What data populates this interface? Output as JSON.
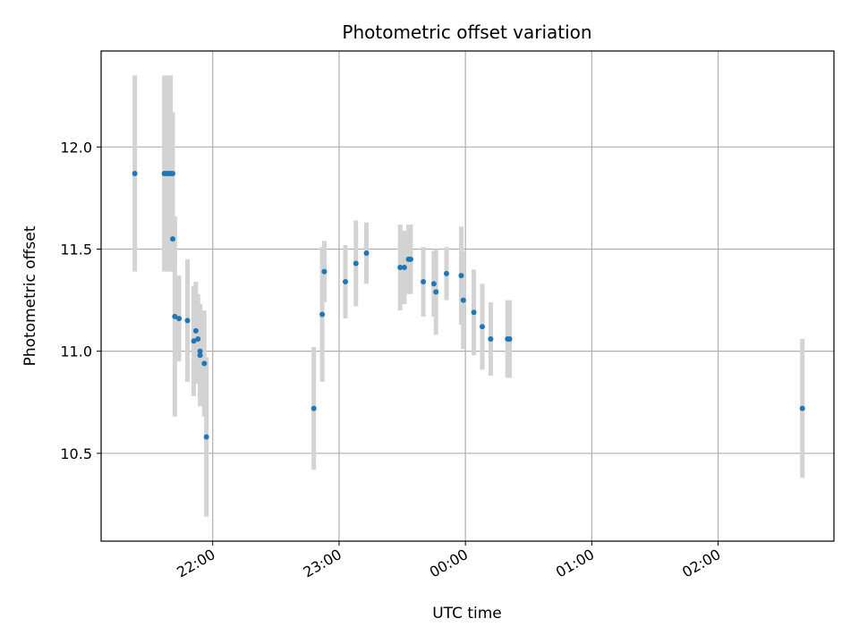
{
  "chart_data": {
    "type": "scatter",
    "title": "Photometric offset variation",
    "xlabel": "UTC time",
    "ylabel": "Photometric offset",
    "x_is_time": true,
    "x_tick_labels": [
      "22:00",
      "23:00",
      "00:00",
      "01:00",
      "02:00"
    ],
    "x_ticks": [
      "22:00",
      "23:00",
      "24:00",
      "25:00",
      "26:00"
    ],
    "y_ticks": [
      10.5,
      11.0,
      11.5,
      12.0
    ],
    "y_tick_labels": [
      "10.5",
      "11.0",
      "11.5",
      "12.0"
    ],
    "xlim": [
      "21:07",
      "26:55"
    ],
    "ylim": [
      10.07,
      12.47
    ],
    "grid": true,
    "colors": {
      "point": "#1f77b4",
      "errorbar": "#d3d3d3",
      "grid": "#b0b0b0"
    },
    "series": [
      {
        "points": [
          {
            "x": "21:23",
            "y": 11.87,
            "err": 0.48
          },
          {
            "x": "21:37",
            "y": 11.87,
            "err": 0.48
          },
          {
            "x": "21:38",
            "y": 11.87,
            "err": 0.48
          },
          {
            "x": "21:39",
            "y": 11.87,
            "err": 0.48
          },
          {
            "x": "21:40",
            "y": 11.87,
            "err": 0.48
          },
          {
            "x": "21:41",
            "y": 11.87,
            "err": 0.3
          },
          {
            "x": "21:41",
            "y": 11.55,
            "err": 0.12
          },
          {
            "x": "21:42",
            "y": 11.17,
            "err": 0.49
          },
          {
            "x": "21:44",
            "y": 11.16,
            "err": 0.21
          },
          {
            "x": "21:48",
            "y": 11.15,
            "err": 0.3
          },
          {
            "x": "21:51",
            "y": 11.05,
            "err": 0.27
          },
          {
            "x": "21:52",
            "y": 11.1,
            "err": 0.24
          },
          {
            "x": "21:53",
            "y": 11.06,
            "err": 0.22
          },
          {
            "x": "21:54",
            "y": 11.0,
            "err": 0.23
          },
          {
            "x": "21:54",
            "y": 10.98,
            "err": 0.25
          },
          {
            "x": "21:56",
            "y": 10.94,
            "err": 0.26
          },
          {
            "x": "21:57",
            "y": 10.58,
            "err": 0.39
          },
          {
            "x": "22:48",
            "y": 10.72,
            "err": 0.3
          },
          {
            "x": "22:52",
            "y": 11.18,
            "err": 0.33
          },
          {
            "x": "22:53",
            "y": 11.39,
            "err": 0.15
          },
          {
            "x": "23:03",
            "y": 11.34,
            "err": 0.18
          },
          {
            "x": "23:08",
            "y": 11.43,
            "err": 0.21
          },
          {
            "x": "23:13",
            "y": 11.48,
            "err": 0.15
          },
          {
            "x": "23:29",
            "y": 11.41,
            "err": 0.21
          },
          {
            "x": "23:31",
            "y": 11.41,
            "err": 0.18
          },
          {
            "x": "23:33",
            "y": 11.45,
            "err": 0.17
          },
          {
            "x": "23:34",
            "y": 11.45,
            "err": 0.17
          },
          {
            "x": "23:40",
            "y": 11.34,
            "err": 0.17
          },
          {
            "x": "23:45",
            "y": 11.33,
            "err": 0.16
          },
          {
            "x": "23:46",
            "y": 11.29,
            "err": 0.21
          },
          {
            "x": "23:51",
            "y": 11.38,
            "err": 0.13
          },
          {
            "x": "23:58",
            "y": 11.37,
            "err": 0.24
          },
          {
            "x": "23:59",
            "y": 11.25,
            "err": 0.24
          },
          {
            "x": "24:04",
            "y": 11.19,
            "err": 0.21
          },
          {
            "x": "24:08",
            "y": 11.12,
            "err": 0.21
          },
          {
            "x": "24:12",
            "y": 11.06,
            "err": 0.18
          },
          {
            "x": "24:20",
            "y": 11.06,
            "err": 0.19
          },
          {
            "x": "24:21",
            "y": 11.06,
            "err": 0.19
          },
          {
            "x": "26:40",
            "y": 10.72,
            "err": 0.34
          }
        ]
      }
    ]
  }
}
